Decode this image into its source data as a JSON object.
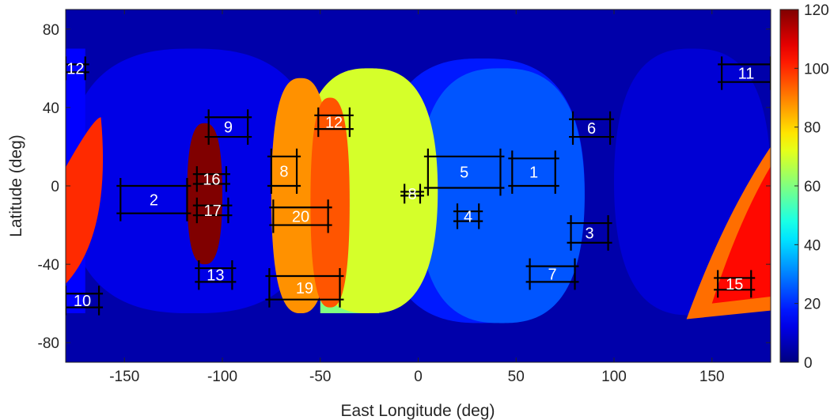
{
  "chart_data": {
    "type": "heatmap",
    "xlabel": "East Longitude (deg)",
    "ylabel": "Latitude (deg)",
    "xlim": [
      -180,
      180
    ],
    "ylim": [
      -90,
      90
    ],
    "xticks": [
      -150,
      -100,
      -50,
      0,
      50,
      100,
      150
    ],
    "yticks": [
      80,
      40,
      0,
      -40,
      -80
    ],
    "colorbar": {
      "colormap": "jet",
      "range": [
        0,
        120
      ],
      "ticks": [
        0,
        20,
        40,
        60,
        80,
        100,
        120
      ]
    },
    "background_value": 5,
    "coverage_patches": [
      {
        "value": 12,
        "lon": [
          -180,
          -50
        ],
        "lat": [
          -65,
          70
        ],
        "shape": "lens"
      },
      {
        "value": 15,
        "lon": [
          -180,
          -170
        ],
        "lat": [
          -65,
          70
        ],
        "shape": "box"
      },
      {
        "value": 10,
        "lon": [
          100,
          180
        ],
        "lat": [
          -66,
          70
        ],
        "shape": "lens"
      },
      {
        "value": 18,
        "lon": [
          -20,
          85
        ],
        "lat": [
          -70,
          65
        ],
        "shape": "lens"
      },
      {
        "value": 25,
        "lon": [
          0,
          85
        ],
        "lat": [
          -70,
          60
        ],
        "shape": "lens"
      },
      {
        "value": 60,
        "lon": [
          -50,
          -20
        ],
        "lat": [
          -65,
          -55
        ],
        "shape": "box"
      },
      {
        "value": 70,
        "lon": [
          -60,
          10
        ],
        "lat": [
          -65,
          60
        ],
        "shape": "lens"
      },
      {
        "value": 88,
        "lon": [
          -75,
          -45
        ],
        "lat": [
          -65,
          55
        ],
        "shape": "lens"
      },
      {
        "value": 95,
        "lon": [
          -55,
          -35
        ],
        "lat": [
          -62,
          45
        ],
        "shape": "lens"
      },
      {
        "value": 100,
        "lon": [
          -180,
          -162
        ],
        "lat": [
          -50,
          35
        ],
        "shape": "crescent-left"
      },
      {
        "value": 92,
        "lon": [
          137,
          180
        ],
        "lat": [
          -68,
          20
        ],
        "shape": "crescent-right"
      },
      {
        "value": 104,
        "lon": [
          150,
          180
        ],
        "lat": [
          -60,
          10
        ],
        "shape": "crescent-right"
      },
      {
        "value": 120,
        "lon": [
          -118,
          -100
        ],
        "lat": [
          -40,
          32
        ],
        "shape": "lens"
      }
    ],
    "regions": [
      {
        "label": "1",
        "lon": [
          48,
          70
        ],
        "lat": [
          0,
          14
        ]
      },
      {
        "label": "2",
        "lon": [
          -152,
          -118
        ],
        "lat": [
          -14,
          0
        ]
      },
      {
        "label": "3",
        "lon": [
          78,
          97
        ],
        "lat": [
          -29,
          -19
        ]
      },
      {
        "label": "4",
        "lon": [
          20,
          31
        ],
        "lat": [
          -18,
          -13
        ]
      },
      {
        "label": "5",
        "lon": [
          5,
          42
        ],
        "lat": [
          -1,
          15
        ]
      },
      {
        "label": "6",
        "lon": [
          79,
          98
        ],
        "lat": [
          25,
          34
        ]
      },
      {
        "label": "7",
        "lon": [
          57,
          80
        ],
        "lat": [
          -49,
          -41
        ]
      },
      {
        "label": "8",
        "lon": [
          -7,
          1
        ],
        "lat": [
          -5,
          -3
        ]
      },
      {
        "label": "9",
        "lon": [
          -107,
          -87
        ],
        "lat": [
          25,
          35
        ]
      },
      {
        "label": "10",
        "lon": [
          -180,
          -163
        ],
        "lat": [
          -62,
          -55
        ]
      },
      {
        "label": "11",
        "lon": [
          155,
          180
        ],
        "lat": [
          53,
          62
        ]
      },
      {
        "label": "12",
        "lon": [
          -51,
          -35
        ],
        "lat": [
          29,
          36
        ]
      },
      {
        "label": "12",
        "lon": [
          -180,
          -170
        ],
        "lat": [
          58,
          62
        ]
      },
      {
        "label": "13",
        "lon": [
          -112,
          -95
        ],
        "lat": [
          -49,
          -42
        ]
      },
      {
        "label": "15",
        "lon": [
          153,
          170
        ],
        "lat": [
          -53,
          -47
        ]
      },
      {
        "label": "16",
        "lon": [
          -113,
          -98
        ],
        "lat": [
          1,
          6
        ]
      },
      {
        "label": "17",
        "lon": [
          -113,
          -97
        ],
        "lat": [
          -15,
          -10
        ]
      },
      {
        "label": "19",
        "lon": [
          -76,
          -40
        ],
        "lat": [
          -58,
          -46
        ]
      },
      {
        "label": "20",
        "lon": [
          -74,
          -46
        ],
        "lat": [
          -20,
          -11
        ]
      },
      {
        "label": "8",
        "lon": [
          -75,
          -62
        ],
        "lat": [
          0,
          15
        ]
      }
    ]
  }
}
